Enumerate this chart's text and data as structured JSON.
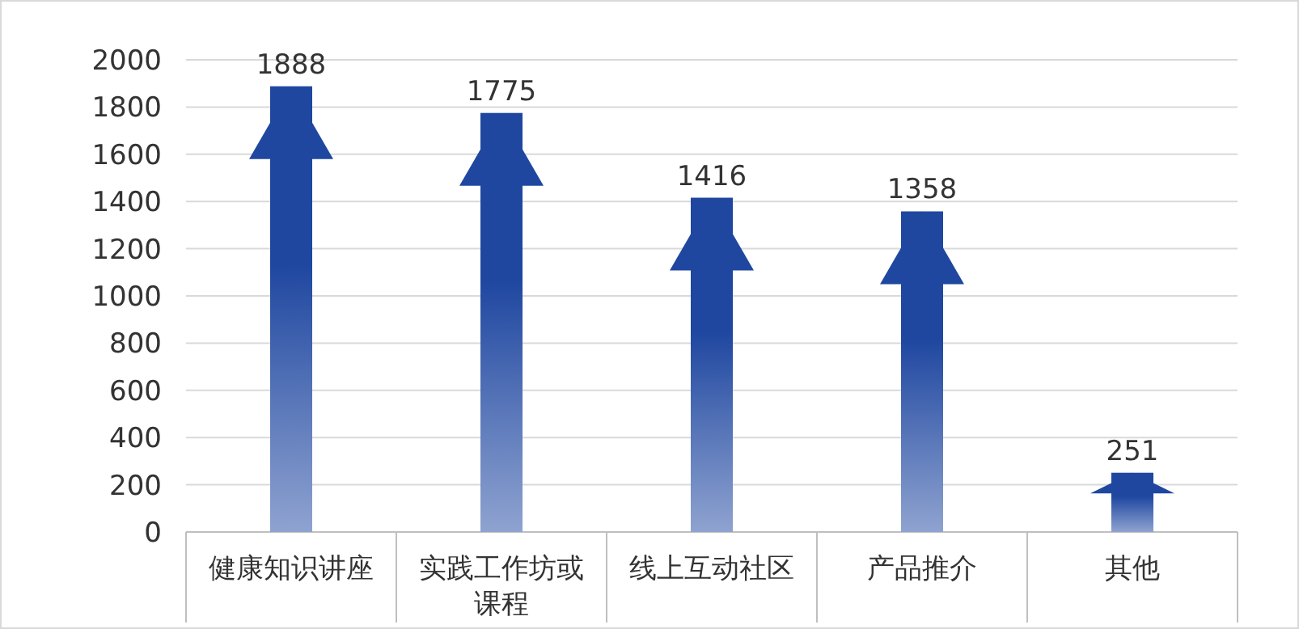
{
  "chart_data": {
    "type": "bar",
    "categories": [
      "健康知识讲座",
      "实践工作坊或课程",
      "线上互动社区",
      "产品推介",
      "其他"
    ],
    "values": [
      1888,
      1775,
      1416,
      1358,
      251
    ],
    "color": "#1f47a0",
    "ylim": [
      0,
      2000
    ],
    "yticks": [
      0,
      200,
      400,
      600,
      800,
      1000,
      1200,
      1400,
      1600,
      1800,
      2000
    ],
    "grid": "y",
    "data_labels": true
  }
}
